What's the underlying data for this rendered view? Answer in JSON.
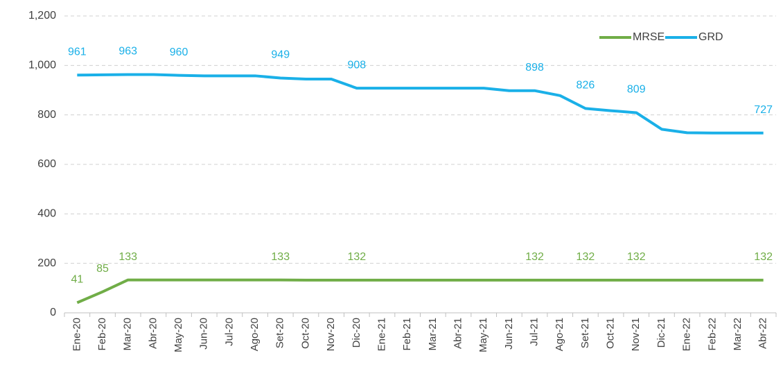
{
  "chart_data": {
    "type": "line",
    "categories": [
      "Ene-20",
      "Feb-20",
      "Mar-20",
      "Abr-20",
      "May-20",
      "Jun-20",
      "Jul-20",
      "Ago-20",
      "Set-20",
      "Oct-20",
      "Nov-20",
      "Dic-20",
      "Ene-21",
      "Feb-21",
      "Mar-21",
      "Abr-21",
      "May-21",
      "Jun-21",
      "Jul-21",
      "Ago-21",
      "Set-21",
      "Oct-21",
      "Nov-21",
      "Dic-21",
      "Ene-22",
      "Feb-22",
      "Mar-22",
      "Abr-22"
    ],
    "series": [
      {
        "name": "MRSE",
        "color": "#70ad47",
        "values": [
          41,
          85,
          133,
          133,
          133,
          133,
          133,
          133,
          133,
          132,
          132,
          132,
          132,
          132,
          132,
          132,
          132,
          132,
          132,
          132,
          132,
          132,
          132,
          132,
          132,
          132,
          132,
          132
        ],
        "value_labels": [
          "41",
          "85",
          "133",
          null,
          null,
          null,
          null,
          null,
          "133",
          null,
          null,
          "132",
          null,
          null,
          null,
          null,
          null,
          null,
          "132",
          null,
          "132",
          null,
          "132",
          null,
          null,
          null,
          null,
          "132"
        ]
      },
      {
        "name": "GRD",
        "color": "#1ab0e8",
        "values": [
          961,
          962,
          963,
          963,
          960,
          958,
          958,
          958,
          949,
          945,
          945,
          908,
          908,
          908,
          908,
          908,
          908,
          898,
          898,
          878,
          826,
          817,
          809,
          742,
          728,
          727,
          727,
          727
        ],
        "value_labels": [
          "961",
          null,
          "963",
          null,
          "960",
          null,
          null,
          null,
          "949",
          null,
          null,
          "908",
          null,
          null,
          null,
          null,
          null,
          null,
          "898",
          null,
          "826",
          null,
          "809",
          null,
          null,
          null,
          null,
          "727"
        ]
      }
    ],
    "ylim": [
      0,
      1200
    ],
    "yticks": [
      0,
      200,
      400,
      600,
      800,
      {
        "value": 1000,
        "label": "1,000"
      },
      {
        "value": 1200,
        "label": "1,200"
      }
    ],
    "grid": true,
    "legend": "top-right"
  }
}
